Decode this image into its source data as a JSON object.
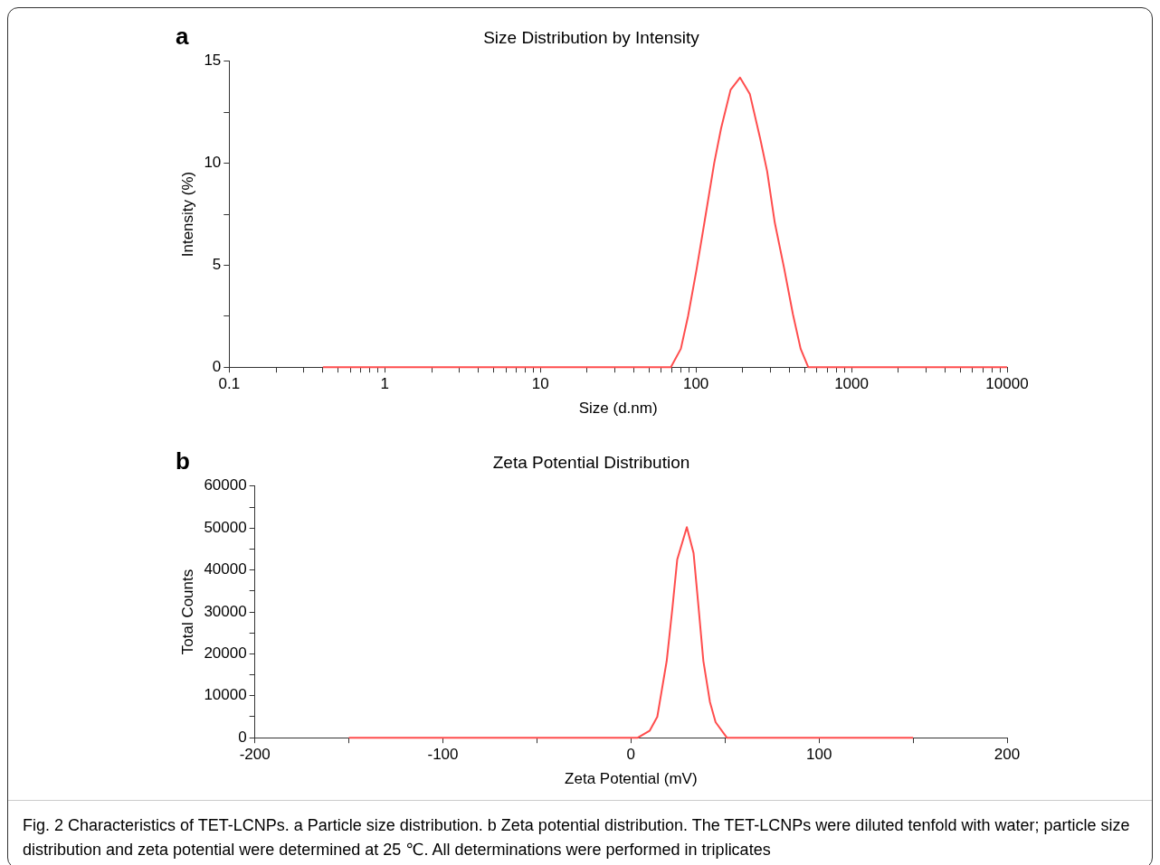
{
  "chart_data": [
    {
      "type": "line",
      "title": "Size Distribution by Intensity",
      "xlabel": "Size (d.nm)",
      "ylabel": "Intensity (%)",
      "annotations": [
        "a"
      ],
      "log": "x",
      "xlim": [
        0.1,
        10000
      ],
      "ylim": [
        0,
        15
      ],
      "xticks": [
        0.1,
        {
          "value": 0.2,
          "label": null
        },
        {
          "value": 0.3,
          "label": null
        },
        {
          "value": 0.4,
          "label": null
        },
        {
          "value": 0.5,
          "label": null
        },
        {
          "value": 0.6,
          "label": null
        },
        {
          "value": 0.7,
          "label": null
        },
        {
          "value": 0.8,
          "label": null
        },
        {
          "value": 0.9,
          "label": null
        },
        1,
        {
          "value": 2,
          "label": null
        },
        {
          "value": 3,
          "label": null
        },
        {
          "value": 4,
          "label": null
        },
        {
          "value": 5,
          "label": null
        },
        {
          "value": 6,
          "label": null
        },
        {
          "value": 7,
          "label": null
        },
        {
          "value": 8,
          "label": null
        },
        {
          "value": 9,
          "label": null
        },
        10,
        {
          "value": 20,
          "label": null
        },
        {
          "value": 30,
          "label": null
        },
        {
          "value": 40,
          "label": null
        },
        {
          "value": 50,
          "label": null
        },
        {
          "value": 60,
          "label": null
        },
        {
          "value": 70,
          "label": null
        },
        {
          "value": 80,
          "label": null
        },
        {
          "value": 90,
          "label": null
        },
        100,
        {
          "value": 200,
          "label": null
        },
        {
          "value": 300,
          "label": null
        },
        {
          "value": 400,
          "label": null
        },
        {
          "value": 500,
          "label": null
        },
        {
          "value": 600,
          "label": null
        },
        {
          "value": 700,
          "label": null
        },
        {
          "value": 800,
          "label": null
        },
        {
          "value": 900,
          "label": null
        },
        1000,
        {
          "value": 2000,
          "label": null
        },
        {
          "value": 3000,
          "label": null
        },
        {
          "value": 4000,
          "label": null
        },
        {
          "value": 5000,
          "label": null
        },
        {
          "value": 6000,
          "label": null
        },
        {
          "value": 7000,
          "label": null
        },
        {
          "value": 8000,
          "label": null
        },
        {
          "value": 9000,
          "label": null
        },
        10000
      ],
      "yticks": [
        0,
        {
          "value": 2.5,
          "label": null
        },
        5,
        {
          "value": 7.5,
          "label": null
        },
        10,
        {
          "value": 12.5,
          "label": null
        },
        15
      ],
      "series": [
        {
          "color": "#ff4d4d",
          "x": [
            0.4,
            69,
            80,
            89,
            101,
            114,
            131,
            145,
            167,
            192,
            222,
            259,
            287,
            321,
            370,
            420,
            471,
            527,
            10000
          ],
          "values": [
            0,
            0,
            0.9,
            2.5,
            4.8,
            7.2,
            10,
            11.7,
            13.6,
            14.2,
            13.4,
            11.2,
            9.6,
            7.1,
            4.8,
            2.6,
            0.9,
            0,
            0
          ]
        }
      ]
    },
    {
      "type": "line",
      "title": "Zeta Potential Distribution",
      "xlabel": "Zeta Potential (mV)",
      "ylabel": "Total Counts",
      "annotations": [
        "b",
        "Fig. 2 Characteristics of TET-LCNPs. a Particle size distribution. b Zeta potential distribution. The TET-LCNPs were diluted tenfold with water; particle size distribution and zeta potential were determined at 25 ℃. All determinations were performed in triplicates"
      ],
      "xlim": [
        -200,
        200
      ],
      "ylim": [
        0,
        60000
      ],
      "xticks": [
        -200,
        {
          "value": -150,
          "label": null
        },
        -100,
        {
          "value": -50,
          "label": null
        },
        0,
        {
          "value": 50,
          "label": null
        },
        100,
        {
          "value": 150,
          "label": null
        },
        200
      ],
      "yticks": [
        0,
        {
          "value": 5000,
          "label": null
        },
        10000,
        {
          "value": 15000,
          "label": null
        },
        20000,
        {
          "value": 25000,
          "label": null
        },
        30000,
        {
          "value": 35000,
          "label": null
        },
        40000,
        {
          "value": 45000,
          "label": null
        },
        50000,
        {
          "value": 55000,
          "label": null
        },
        60000
      ],
      "series": [
        {
          "color": "#ff4d4d",
          "x": [
            -150,
            3.6,
            10,
            14,
            19,
            22,
            24.6,
            29.7,
            33.3,
            36,
            38.5,
            42,
            45,
            51,
            150
          ],
          "values": [
            0,
            0,
            1700,
            5000,
            18300,
            30800,
            42500,
            50200,
            44000,
            30800,
            18300,
            8500,
            3700,
            0,
            0
          ]
        }
      ]
    }
  ]
}
